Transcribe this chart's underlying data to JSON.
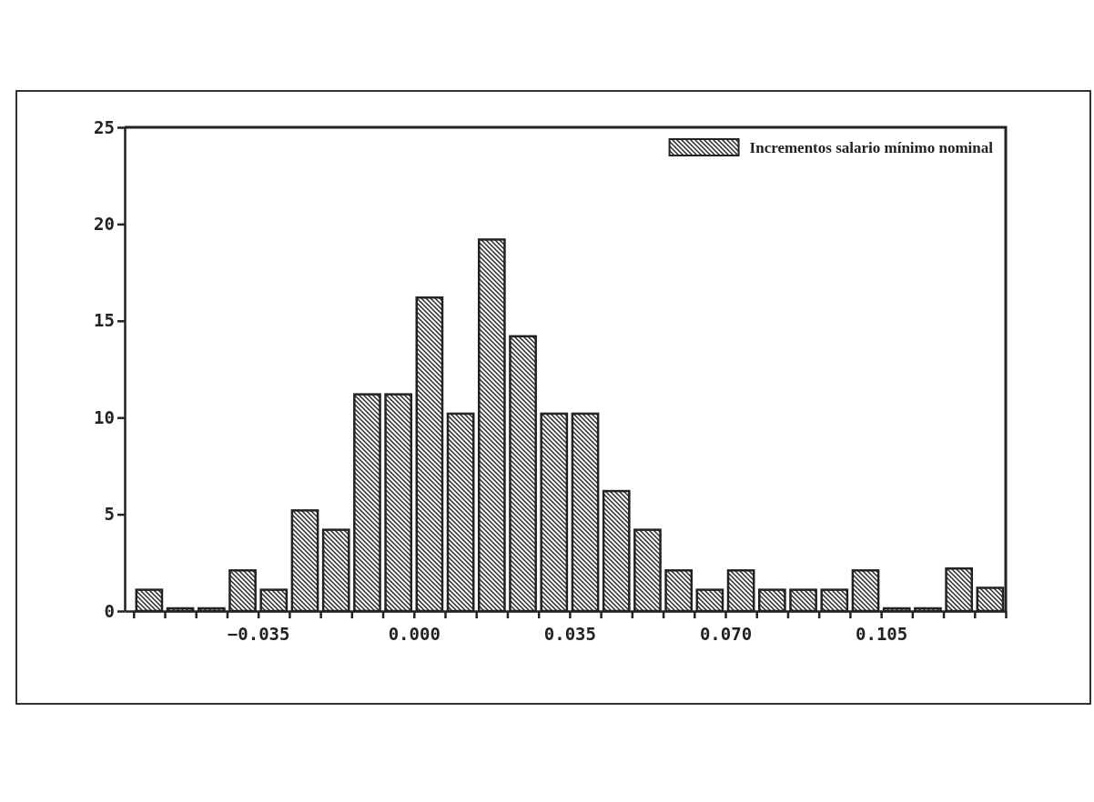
{
  "chart_data": {
    "type": "histogram",
    "bins": [
      -0.063,
      -0.056,
      -0.049,
      -0.042,
      -0.035,
      -0.028,
      -0.021,
      -0.014,
      -0.007,
      0.0,
      0.007,
      0.014,
      0.021,
      0.028,
      0.035,
      0.042,
      0.049,
      0.056,
      0.063,
      0.07,
      0.077,
      0.084,
      0.091,
      0.098,
      0.105,
      0.112,
      0.119,
      0.126,
      0.133
    ],
    "series": [
      {
        "name": "Incrementos salario mínimo nominal",
        "color": "#222222",
        "values": [
          1.1,
          0,
          0,
          2.1,
          1.1,
          5.2,
          4.2,
          11.2,
          11.2,
          16.2,
          10.2,
          19.2,
          14.2,
          10.2,
          10.2,
          6.2,
          4.2,
          2.1,
          1.1,
          2.1,
          1.1,
          1.1,
          1.1,
          2.1,
          0,
          0,
          2.2,
          1.2
        ]
      }
    ],
    "xlim": [
      -0.065,
      0.133
    ],
    "xticks": [
      {
        "value": -0.063,
        "label": null
      },
      {
        "value": -0.056,
        "label": null
      },
      {
        "value": -0.049,
        "label": null
      },
      {
        "value": -0.042,
        "label": null
      },
      {
        "value": -0.035,
        "label": "−0.035"
      },
      {
        "value": -0.028,
        "label": null
      },
      {
        "value": -0.021,
        "label": null
      },
      {
        "value": -0.014,
        "label": null
      },
      {
        "value": -0.007,
        "label": null
      },
      {
        "value": 0.0,
        "label": "0.000"
      },
      {
        "value": 0.007,
        "label": null
      },
      {
        "value": 0.014,
        "label": null
      },
      {
        "value": 0.021,
        "label": null
      },
      {
        "value": 0.028,
        "label": null
      },
      {
        "value": 0.035,
        "label": "0.035"
      },
      {
        "value": 0.042,
        "label": null
      },
      {
        "value": 0.049,
        "label": null
      },
      {
        "value": 0.056,
        "label": null
      },
      {
        "value": 0.063,
        "label": null
      },
      {
        "value": 0.07,
        "label": "0.070"
      },
      {
        "value": 0.077,
        "label": null
      },
      {
        "value": 0.084,
        "label": null
      },
      {
        "value": 0.091,
        "label": null
      },
      {
        "value": 0.098,
        "label": null
      },
      {
        "value": 0.105,
        "label": "0.105"
      },
      {
        "value": 0.112,
        "label": null
      },
      {
        "value": 0.119,
        "label": null
      },
      {
        "value": 0.126,
        "label": null
      },
      {
        "value": 0.133,
        "label": null
      }
    ],
    "ylim": [
      0,
      25
    ],
    "yticks": [
      0,
      5,
      10,
      15,
      20,
      25
    ],
    "legend": "top right"
  }
}
